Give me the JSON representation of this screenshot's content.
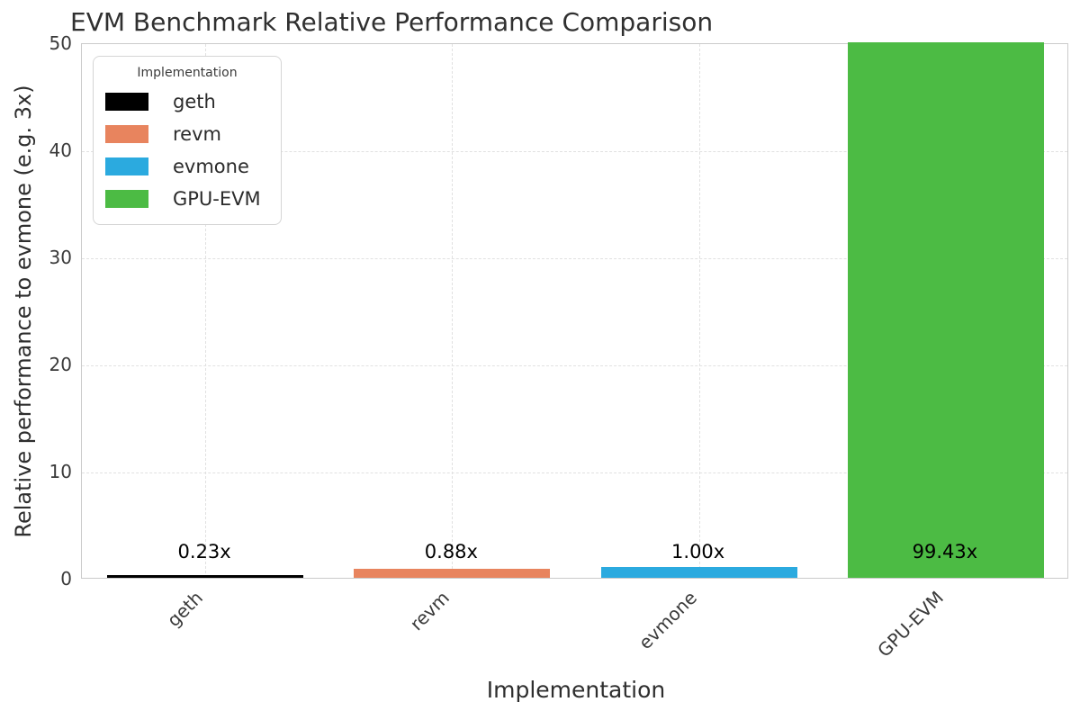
{
  "title": "EVM Benchmark Relative Performance Comparison",
  "axes": {
    "xlabel": "Implementation",
    "ylabel": "Relative performance to evmone (e.g. 3x)"
  },
  "legend": {
    "title": "Implementation",
    "position": "upper left",
    "items": [
      {
        "label": "geth",
        "color": "#000000"
      },
      {
        "label": "revm",
        "color": "#E8845E"
      },
      {
        "label": "evmone",
        "color": "#2BAADF"
      },
      {
        "label": "GPU-EVM",
        "color": "#4CBB44"
      }
    ]
  },
  "chart_data": {
    "type": "bar",
    "title": "EVM Benchmark Relative Performance Comparison",
    "xlabel": "Implementation",
    "ylabel": "Relative performance to evmone (e.g. 3x)",
    "categories": [
      "geth",
      "revm",
      "evmone",
      "GPU-EVM"
    ],
    "values": [
      0.23,
      0.88,
      1.0,
      99.43
    ],
    "bar_labels": [
      "0.23x",
      "0.88x",
      "1.00x",
      "99.43x"
    ],
    "colors": [
      "#000000",
      "#E8845E",
      "#2BAADF",
      "#4CBB44"
    ],
    "ylim": [
      0,
      50
    ],
    "yticks": [
      0,
      10,
      20,
      30,
      40,
      50
    ],
    "grid": true,
    "grid_style": "dashed",
    "bars_clipped_at_ylim": [
      "GPU-EVM"
    ],
    "legend_position": "upper left"
  }
}
